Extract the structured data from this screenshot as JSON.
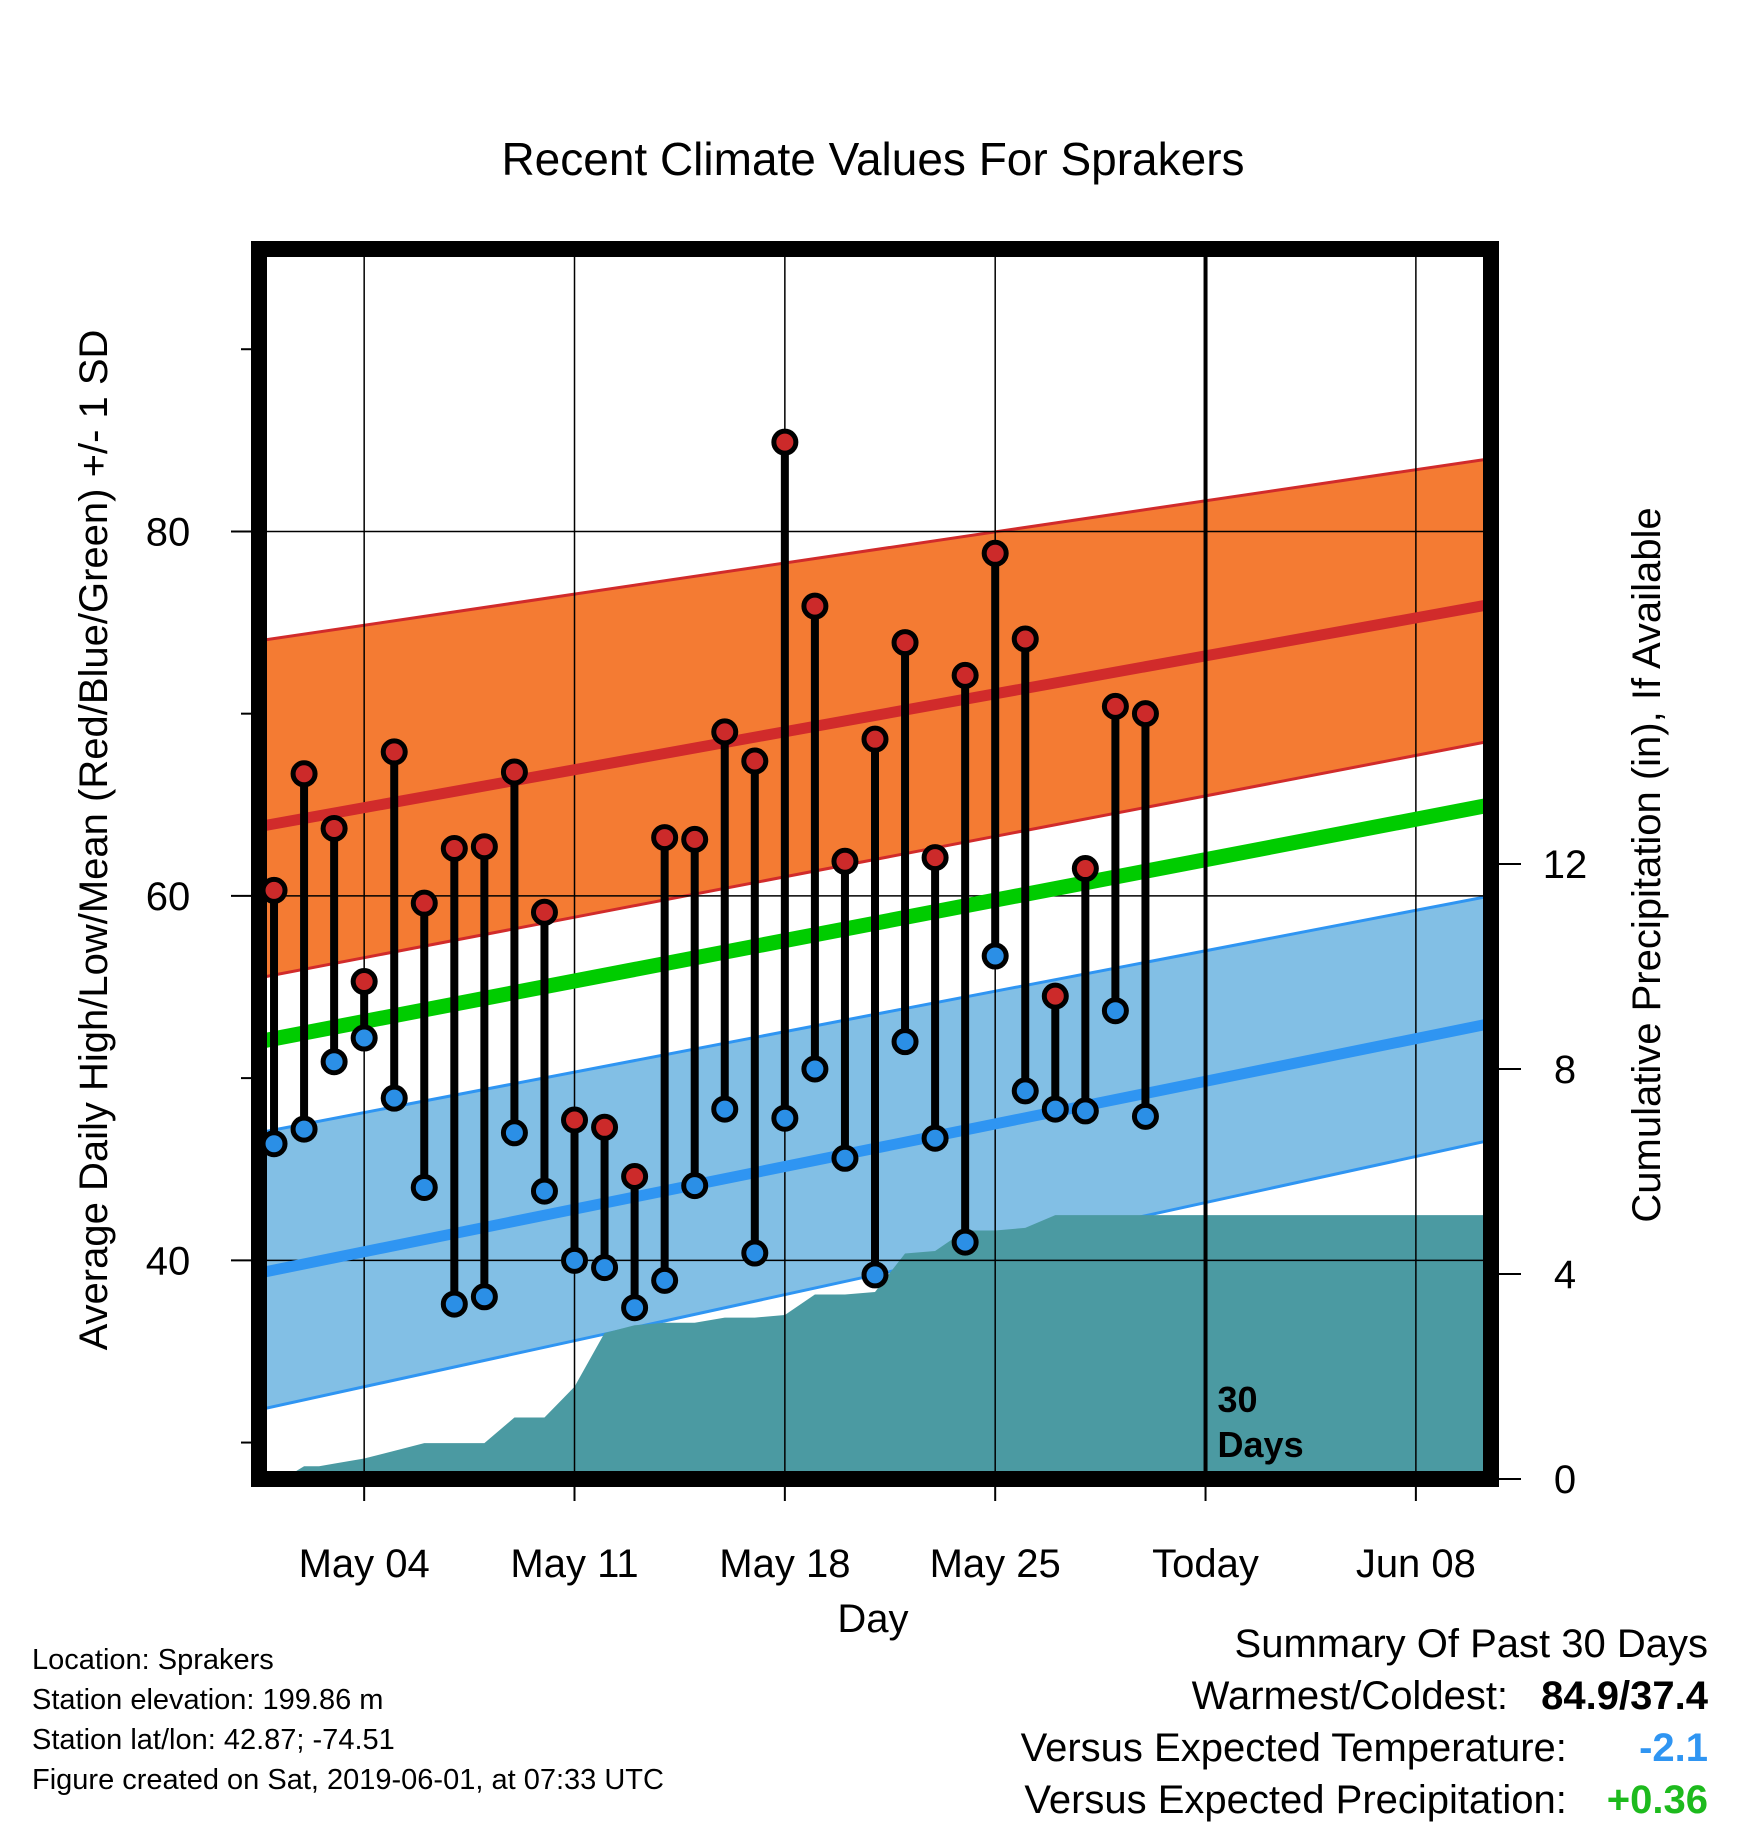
{
  "chart_data": {
    "type": "line",
    "title": "Recent Climate Values For Sprakers",
    "xlabel": "Day",
    "ylabel_left": "Average Daily High/Low/Mean (Red/Blue/Green) +/- 1 SD",
    "ylabel_right": "Cumulative Precipitation (in), If Available",
    "ylim": [
      28,
      95.5
    ],
    "precip_ylim": [
      0,
      24
    ],
    "x_range_days": [
      0.5,
      41.5
    ],
    "x_ticks": [
      {
        "day": 4,
        "label": "May 04"
      },
      {
        "day": 11,
        "label": "May 11"
      },
      {
        "day": 18,
        "label": "May 18"
      },
      {
        "day": 25,
        "label": "May 25"
      },
      {
        "day": 32,
        "label": "Today"
      },
      {
        "day": 39,
        "label": "Jun 08"
      }
    ],
    "y_ticks_left": [
      40,
      60,
      80
    ],
    "y_ticks_right": [
      0,
      4,
      8,
      12
    ],
    "today_day": 32,
    "today_label": "30",
    "today_label2": "Days",
    "normals": {
      "start_day": 0.5,
      "end_day": 41.5,
      "high_mean": [
        63.8,
        76.0
      ],
      "high_upper": [
        74.0,
        84.0
      ],
      "high_lower": [
        55.5,
        68.5
      ],
      "mean": [
        52.0,
        65.0
      ],
      "low_mean": [
        39.3,
        53.0
      ],
      "low_upper": [
        47.0,
        60.0
      ],
      "low_lower": [
        31.8,
        46.6
      ]
    },
    "series": [
      {
        "name": "High",
        "days": [
          1,
          2,
          3,
          4,
          5,
          6,
          7,
          8,
          9,
          10,
          11,
          12,
          13,
          14,
          15,
          16,
          17,
          18,
          19,
          20,
          21,
          22,
          23,
          24,
          25,
          26,
          27,
          28,
          29,
          30
        ],
        "values": [
          60.3,
          66.7,
          63.7,
          55.3,
          67.9,
          59.6,
          62.6,
          62.7,
          66.8,
          59.1,
          47.7,
          47.3,
          44.6,
          63.2,
          63.1,
          69.0,
          67.4,
          84.9,
          75.9,
          61.9,
          68.6,
          73.9,
          62.1,
          72.1,
          78.8,
          74.1,
          54.5,
          61.5,
          70.4,
          70.0
        ]
      },
      {
        "name": "Low",
        "days": [
          1,
          2,
          3,
          4,
          5,
          6,
          7,
          8,
          9,
          10,
          11,
          12,
          13,
          14,
          15,
          16,
          17,
          18,
          19,
          20,
          21,
          22,
          23,
          24,
          25,
          26,
          27,
          28,
          29,
          30
        ],
        "values": [
          46.4,
          47.2,
          50.9,
          52.2,
          48.9,
          44.0,
          37.6,
          38.0,
          47.0,
          43.8,
          40.0,
          39.6,
          37.4,
          38.9,
          44.1,
          48.3,
          40.4,
          47.8,
          50.5,
          45.6,
          39.2,
          52.0,
          46.7,
          41.0,
          56.7,
          49.3,
          48.3,
          48.2,
          53.7,
          47.9
        ]
      }
    ],
    "precip": {
      "days": [
        1,
        1.3,
        2,
        2.5,
        3,
        4,
        5,
        6,
        7,
        8,
        9,
        10,
        11,
        12,
        13,
        14,
        15,
        16,
        17,
        18,
        19,
        20,
        21,
        22,
        23,
        24,
        25,
        26,
        27,
        28,
        29,
        30,
        31,
        32,
        33,
        34,
        35,
        36,
        37,
        38,
        39,
        40,
        41.5
      ],
      "values": [
        0,
        0,
        0.25,
        0.25,
        0.3,
        0.4,
        0.55,
        0.7,
        0.7,
        0.7,
        1.2,
        1.2,
        1.8,
        2.85,
        3.0,
        3.05,
        3.05,
        3.15,
        3.15,
        3.2,
        3.6,
        3.6,
        3.65,
        4.4,
        4.45,
        4.85,
        4.85,
        4.9,
        5.15,
        5.15,
        5.15,
        5.15,
        5.15,
        5.15,
        5.15,
        5.15,
        5.15,
        5.15,
        5.15,
        5.15,
        5.15,
        5.15,
        5.15
      ]
    },
    "colors": {
      "high_band": "#F47B33",
      "high_line": "#D12B2B",
      "low_band": "#82BFE5",
      "low_line": "#2F95F2",
      "mean_line": "#00CC00",
      "precip_fill": "#4B9AA2",
      "high_dot": "#CC2A2A",
      "low_dot": "#2B8FE6"
    },
    "grid": true
  },
  "footer": {
    "location": "Location: Sprakers",
    "elevation": "Station elevation: 199.86 m",
    "latlon": "Station lat/lon: 42.87; -74.51",
    "created": "Figure created on Sat, 2019-06-01, at 07:33 UTC"
  },
  "summary": {
    "heading": "Summary Of Past 30 Days",
    "warmest_label": "Warmest/Coldest:",
    "warmest_value": "84.9/37.4",
    "temp_label": "Versus Expected Temperature:",
    "temp_value": "-2.1",
    "temp_color": "#2F95F2",
    "precip_label": "Versus Expected Precipitation:",
    "precip_value": "+0.36",
    "precip_color": "#1DBA1D"
  }
}
